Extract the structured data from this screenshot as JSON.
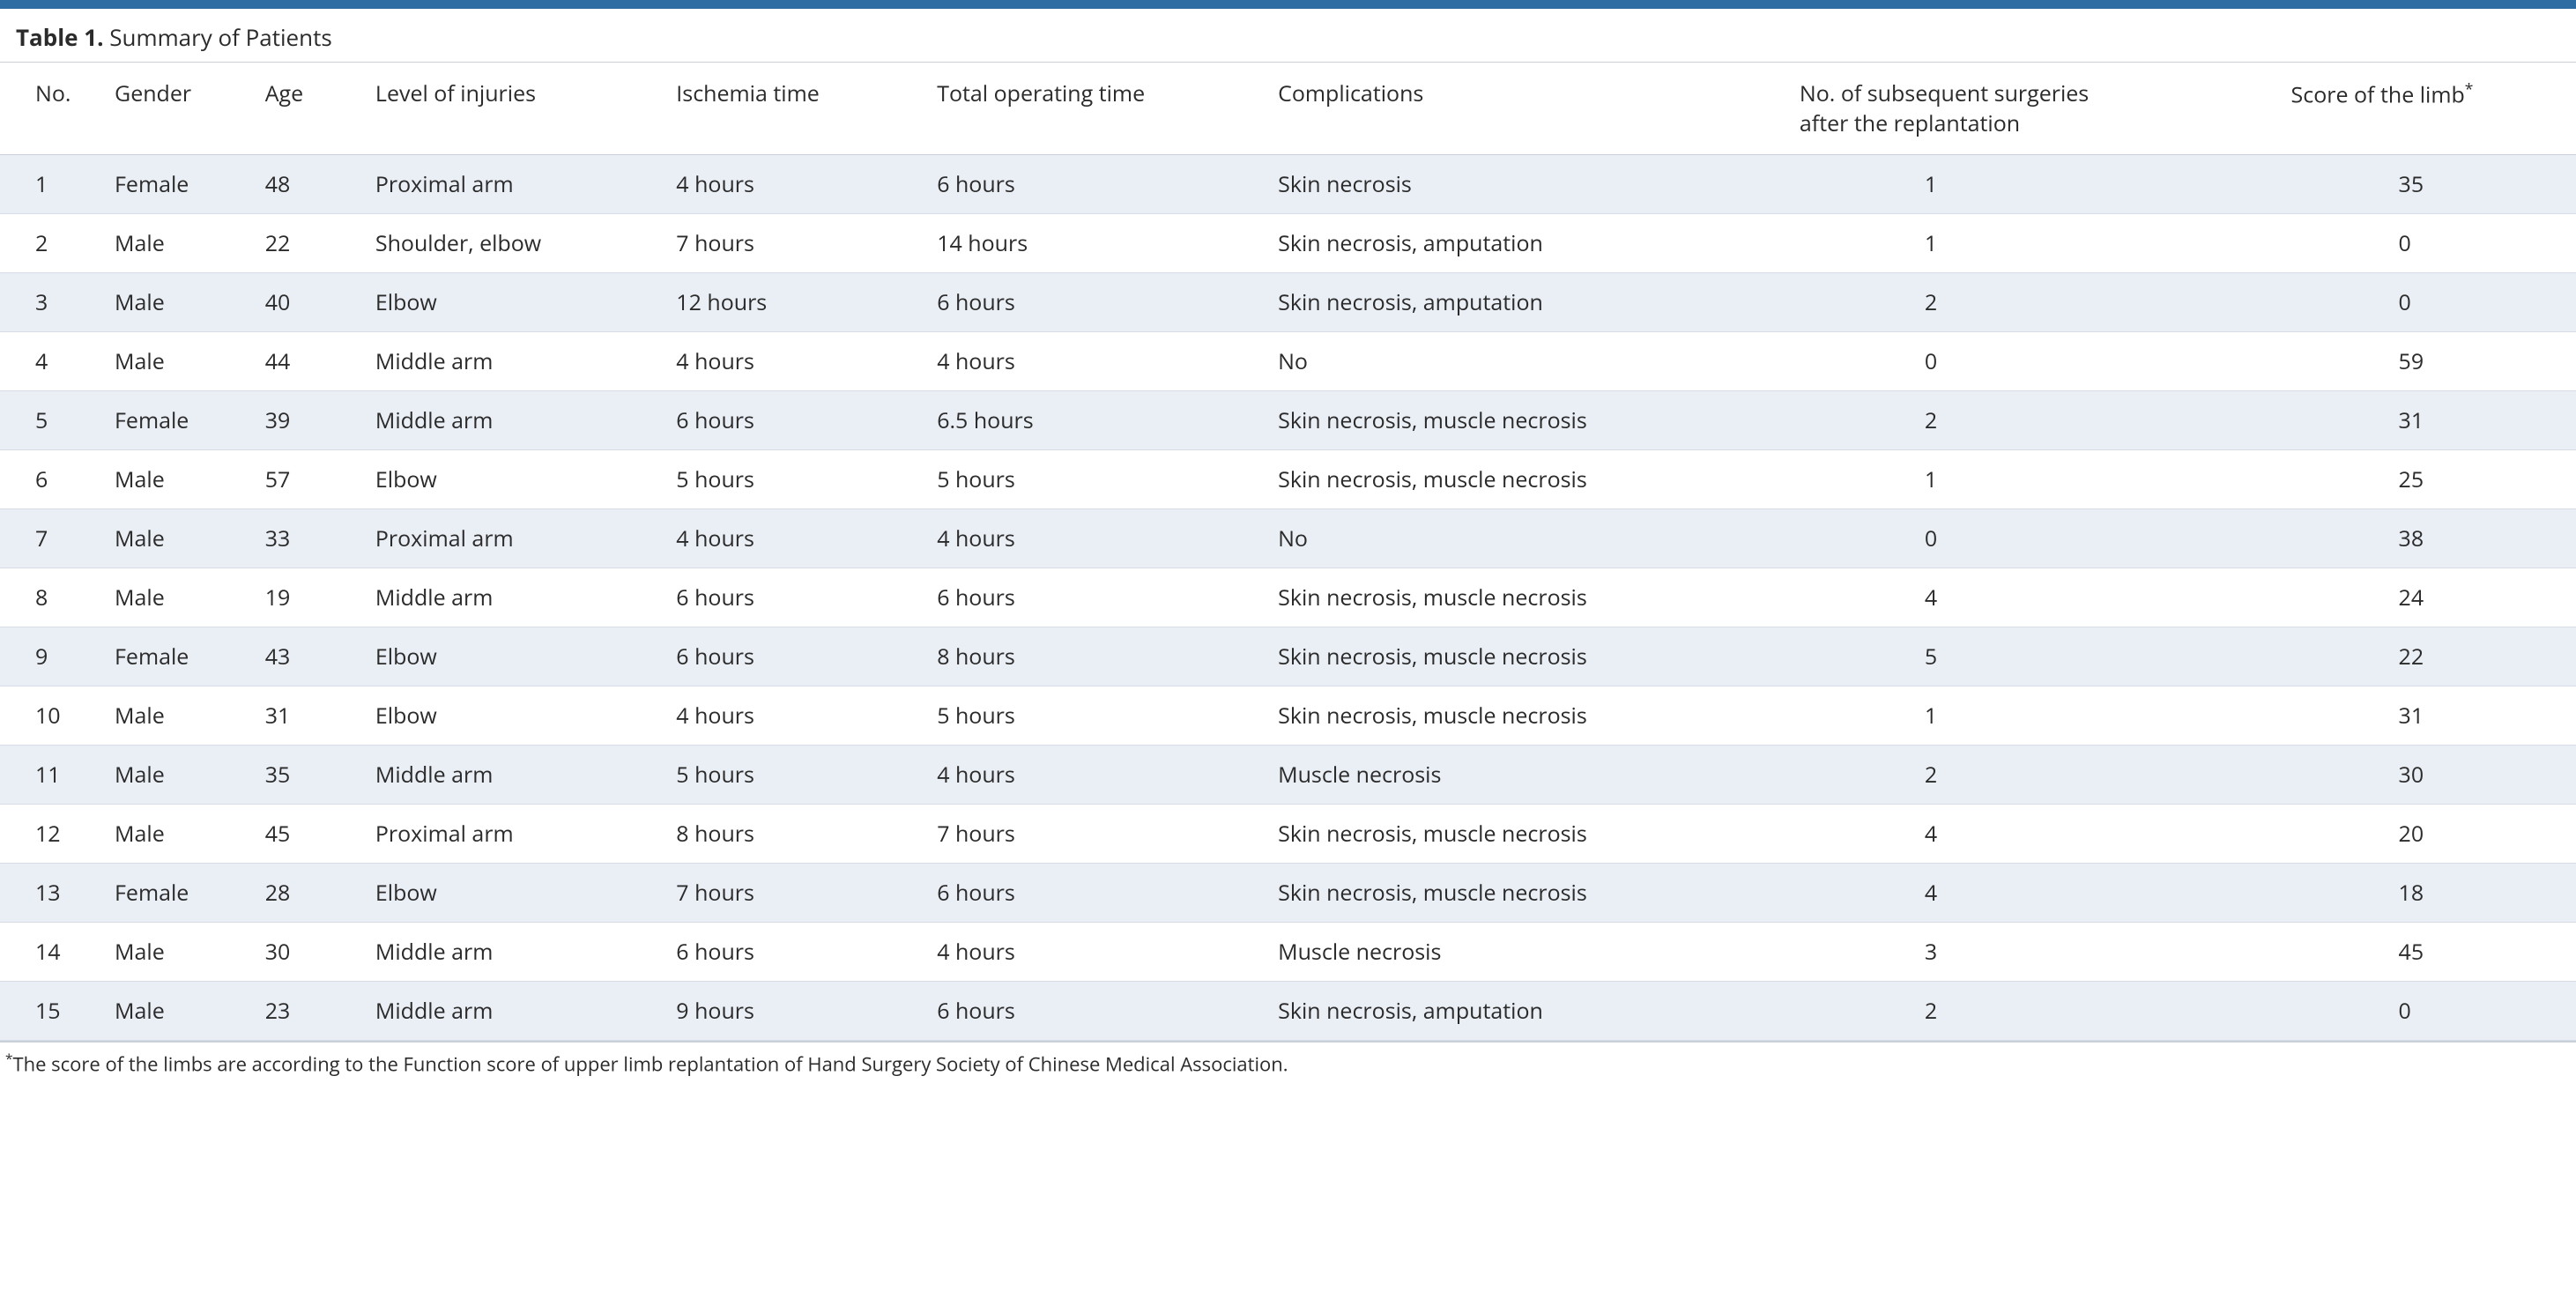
{
  "colors": {
    "topbar": "#2e6da4",
    "stripe": "#eaeef5",
    "row_border": "#d7dde6",
    "header_border": "#c9d0da",
    "text": "#2b2b2b"
  },
  "title_prefix": "Table 1.",
  "title_text": " Summary of Patients",
  "footnote_marker": "*",
  "footnote": "The score of the limbs are according to the Function score of upper limb replantation of Hand Surgery Society of Chinese Medical Association.",
  "columns": [
    {
      "key": "no",
      "label": "No."
    },
    {
      "key": "gender",
      "label": "Gender"
    },
    {
      "key": "age",
      "label": "Age"
    },
    {
      "key": "level",
      "label": "Level of injuries"
    },
    {
      "key": "isch",
      "label": "Ischemia time"
    },
    {
      "key": "total",
      "label": "Total operating time"
    },
    {
      "key": "comp",
      "label": "Complications"
    },
    {
      "key": "subs",
      "label_line1": "No. of subsequent surgeries",
      "label_line2": "after the replantation"
    },
    {
      "key": "score",
      "label": "Score of the limb",
      "sup": "*"
    }
  ],
  "rows": [
    {
      "no": "1",
      "gender": "Female",
      "age": "48",
      "level": "Proximal arm",
      "isch": "4 hours",
      "total": "6 hours",
      "comp": "Skin necrosis",
      "subs": "1",
      "score": "35"
    },
    {
      "no": "2",
      "gender": "Male",
      "age": "22",
      "level": "Shoulder, elbow",
      "isch": "7 hours",
      "total": "14 hours",
      "comp": "Skin necrosis, amputation",
      "subs": "1",
      "score": "0"
    },
    {
      "no": "3",
      "gender": "Male",
      "age": "40",
      "level": "Elbow",
      "isch": "12 hours",
      "total": "6 hours",
      "comp": "Skin necrosis, amputation",
      "subs": "2",
      "score": "0"
    },
    {
      "no": "4",
      "gender": "Male",
      "age": "44",
      "level": "Middle arm",
      "isch": "4 hours",
      "total": "4 hours",
      "comp": "No",
      "subs": "0",
      "score": "59"
    },
    {
      "no": "5",
      "gender": "Female",
      "age": "39",
      "level": "Middle arm",
      "isch": "6 hours",
      "total": "6.5 hours",
      "comp": "Skin necrosis, muscle necrosis",
      "subs": "2",
      "score": "31"
    },
    {
      "no": "6",
      "gender": "Male",
      "age": "57",
      "level": "Elbow",
      "isch": "5 hours",
      "total": "5 hours",
      "comp": "Skin necrosis, muscle necrosis",
      "subs": "1",
      "score": "25"
    },
    {
      "no": "7",
      "gender": "Male",
      "age": "33",
      "level": "Proximal arm",
      "isch": "4 hours",
      "total": "4 hours",
      "comp": "No",
      "subs": "0",
      "score": "38"
    },
    {
      "no": "8",
      "gender": "Male",
      "age": "19",
      "level": "Middle arm",
      "isch": "6 hours",
      "total": "6 hours",
      "comp": "Skin necrosis, muscle necrosis",
      "subs": "4",
      "score": "24"
    },
    {
      "no": "9",
      "gender": "Female",
      "age": "43",
      "level": "Elbow",
      "isch": "6 hours",
      "total": "8 hours",
      "comp": "Skin necrosis, muscle necrosis",
      "subs": "5",
      "score": "22"
    },
    {
      "no": "10",
      "gender": "Male",
      "age": "31",
      "level": "Elbow",
      "isch": "4 hours",
      "total": "5 hours",
      "comp": "Skin necrosis, muscle necrosis",
      "subs": "1",
      "score": "31"
    },
    {
      "no": "11",
      "gender": "Male",
      "age": "35",
      "level": "Middle arm",
      "isch": "5 hours",
      "total": "4 hours",
      "comp": "Muscle necrosis",
      "subs": "2",
      "score": "30"
    },
    {
      "no": "12",
      "gender": "Male",
      "age": "45",
      "level": "Proximal arm",
      "isch": "8 hours",
      "total": "7 hours",
      "comp": "Skin necrosis, muscle necrosis",
      "subs": "4",
      "score": "20"
    },
    {
      "no": "13",
      "gender": "Female",
      "age": "28",
      "level": "Elbow",
      "isch": "7 hours",
      "total": "6 hours",
      "comp": "Skin necrosis, muscle necrosis",
      "subs": "4",
      "score": "18"
    },
    {
      "no": "14",
      "gender": "Male",
      "age": "30",
      "level": "Middle arm",
      "isch": "6 hours",
      "total": "4 hours",
      "comp": "Muscle necrosis",
      "subs": "3",
      "score": "45"
    },
    {
      "no": "15",
      "gender": "Male",
      "age": "23",
      "level": "Middle arm",
      "isch": "9 hours",
      "total": "6 hours",
      "comp": "Skin necrosis, amputation",
      "subs": "2",
      "score": "0"
    }
  ]
}
